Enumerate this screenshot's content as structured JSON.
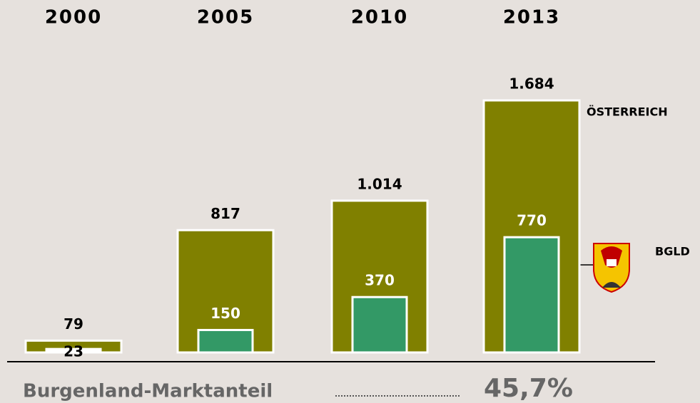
{
  "chart_data": {
    "type": "bar",
    "categories": [
      "2000",
      "2005",
      "2010",
      "2013"
    ],
    "series": [
      {
        "name": "ÖSTERREICH",
        "color": "#808000",
        "values": [
          79,
          817,
          1014,
          1684
        ],
        "value_labels": [
          "79",
          "817",
          "1.014",
          "1.684"
        ]
      },
      {
        "name": "BGLD",
        "color": "#339966",
        "values": [
          23,
          150,
          370,
          770
        ],
        "value_labels": [
          "23",
          "150",
          "370",
          "770"
        ]
      }
    ],
    "annotation": "Burgenland-Marktanteil",
    "share": "45,7%"
  }
}
